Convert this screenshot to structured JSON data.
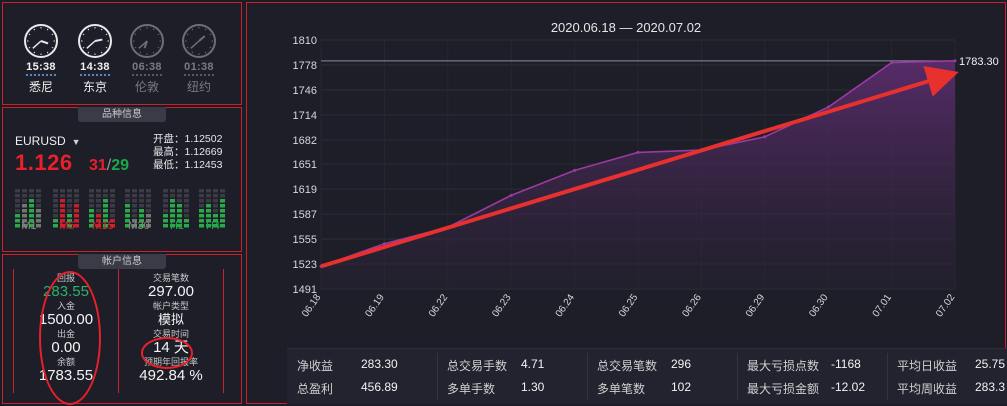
{
  "clocks": [
    {
      "time": "15:38",
      "city": "悉尼",
      "active": true,
      "hour": 3,
      "minute": 38
    },
    {
      "time": "14:38",
      "city": "东京",
      "active": true,
      "hour": 2,
      "minute": 38
    },
    {
      "time": "06:38",
      "city": "伦敦",
      "active": false,
      "hour": 6,
      "minute": 38
    },
    {
      "time": "01:38",
      "city": "纽约",
      "active": false,
      "hour": 1,
      "minute": 38
    }
  ],
  "symbol": {
    "section_title": "品种信息",
    "name": "EURUSD",
    "price_main": "1.126",
    "price_red": "31",
    "price_sep": "/",
    "price_green": "29",
    "open": "开盘：1.12502",
    "high": "最高：1.12669",
    "low": "最低：1.12453",
    "timeframes": [
      {
        "label": "M1",
        "color": "#8a8a8a"
      },
      {
        "label": "M5",
        "color": "#e8202a"
      },
      {
        "label": "M15",
        "color": "#e8202a"
      },
      {
        "label": "M30",
        "color": "#8a8a8a"
      },
      {
        "label": "H1",
        "color": "#1aa84a"
      },
      {
        "label": "H4",
        "color": "#1aa84a"
      }
    ]
  },
  "account": {
    "section_title": "帐户信息",
    "profit_label": "回报",
    "profit_value": "283.55",
    "deposit_label": "入金",
    "deposit_value": "1500.00",
    "withdraw_label": "出金",
    "withdraw_value": "0.00",
    "balance_label": "余额",
    "balance_value": "1783.55",
    "trades_label": "交易笔数",
    "trades_value": "297.00",
    "type_label": "帐户类型",
    "type_value": "模拟",
    "time_label": "交易时间",
    "time_value": "14 天",
    "yield_label": "预期年回报率",
    "yield_value": "492.84 %"
  },
  "chart_data": {
    "type": "area",
    "title": "2020.06.18 — 2020.07.02",
    "categories": [
      "06.18",
      "06.19",
      "06.22",
      "06.23",
      "06.24",
      "06.25",
      "06.26",
      "06.29",
      "06.30",
      "07.01",
      "07.02"
    ],
    "values": [
      1520,
      1549,
      1570,
      1611,
      1643,
      1666,
      1669,
      1686,
      1724,
      1781,
      1783.3
    ],
    "ylim": [
      1491,
      1810
    ],
    "yticks": [
      1491,
      1523,
      1555,
      1587,
      1619,
      1651,
      1682,
      1714,
      1746,
      1778,
      1810
    ],
    "end_label": "1783.30",
    "colors": {
      "line": "#9b3aa0",
      "area": "#4a2a5c",
      "arrow": "#e8302e"
    }
  },
  "stats": [
    {
      "label": "净收益",
      "value": "283.30"
    },
    {
      "label": "总盈利",
      "value": "456.89"
    },
    {
      "label": "总交易手数",
      "value": "4.71"
    },
    {
      "label": "多单手数",
      "value": "1.30"
    },
    {
      "label": "总交易笔数",
      "value": "296"
    },
    {
      "label": "多单笔数",
      "value": "102"
    },
    {
      "label": "最大亏损点数",
      "value": "-1168"
    },
    {
      "label": "最大亏损金额",
      "value": "-12.02"
    },
    {
      "label": "平均日收益",
      "value": "25.75"
    },
    {
      "label": "平均周收益",
      "value": "283.3"
    }
  ]
}
